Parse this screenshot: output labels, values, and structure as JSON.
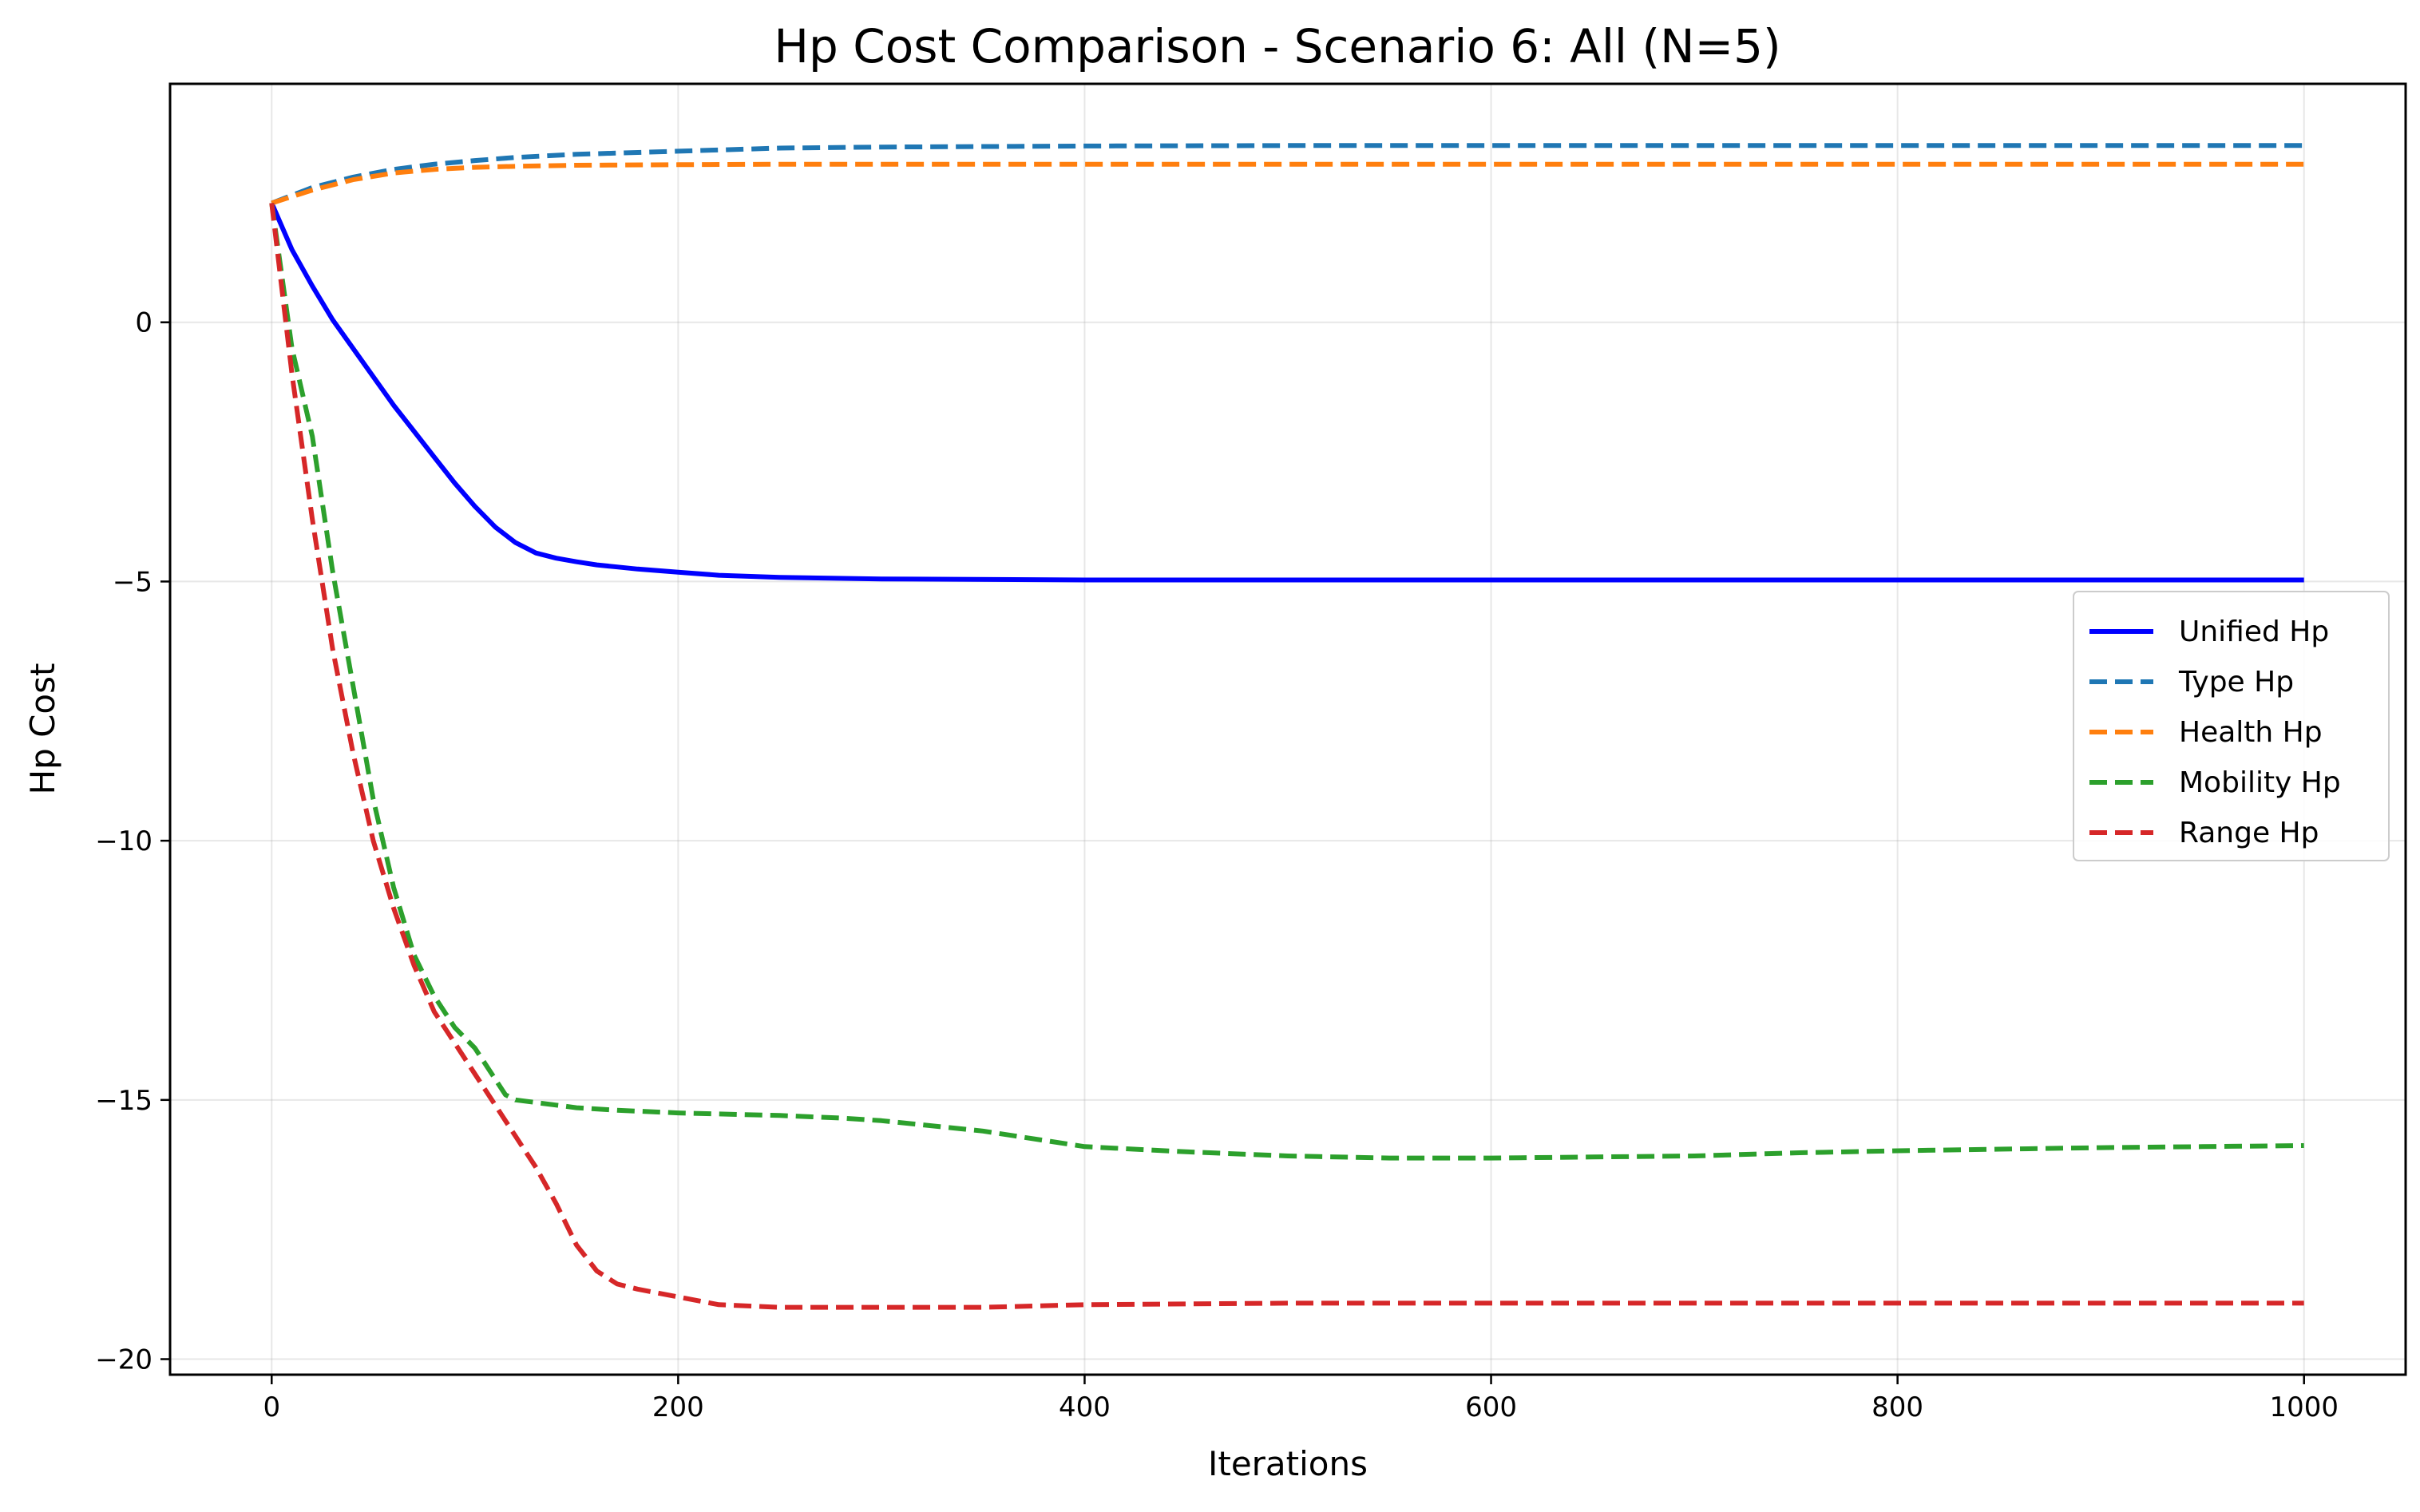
{
  "chart_data": {
    "type": "line",
    "title": "Hp Cost Comparison - Scenario 6: All (N=5)",
    "xlabel": "Iterations",
    "ylabel": "Hp Cost",
    "xlim": [
      -50,
      1050
    ],
    "ylim": [
      -20.3,
      4.6
    ],
    "xticks": [
      0,
      200,
      400,
      600,
      800,
      1000
    ],
    "xtick_labels": [
      "0",
      "200",
      "400",
      "600",
      "800",
      "1000"
    ],
    "yticks": [
      0,
      -5,
      -10,
      -15,
      -20
    ],
    "ytick_labels": [
      "0",
      "−5",
      "−10",
      "−15",
      "−20"
    ],
    "grid": true,
    "legend_position": "center-right",
    "series": [
      {
        "name": "Unified Hp",
        "color": "#0000ff",
        "style": "solid",
        "x": [
          0,
          10,
          20,
          30,
          40,
          50,
          60,
          70,
          80,
          90,
          100,
          110,
          120,
          130,
          140,
          150,
          160,
          170,
          180,
          200,
          220,
          250,
          300,
          400,
          500,
          600,
          700,
          800,
          900,
          1000
        ],
        "y": [
          2.3,
          1.4,
          0.7,
          0.05,
          -0.5,
          -1.05,
          -1.6,
          -2.1,
          -2.6,
          -3.1,
          -3.55,
          -3.95,
          -4.25,
          -4.45,
          -4.55,
          -4.62,
          -4.68,
          -4.72,
          -4.76,
          -4.82,
          -4.88,
          -4.92,
          -4.95,
          -4.97,
          -4.97,
          -4.97,
          -4.97,
          -4.97,
          -4.97,
          -4.97
        ]
      },
      {
        "name": "Type Hp",
        "color": "#1f77b4",
        "style": "dashed",
        "x": [
          0,
          20,
          40,
          60,
          80,
          100,
          120,
          150,
          200,
          250,
          300,
          400,
          500,
          600,
          700,
          800,
          900,
          1000
        ],
        "y": [
          2.3,
          2.6,
          2.8,
          2.95,
          3.05,
          3.12,
          3.18,
          3.24,
          3.3,
          3.36,
          3.38,
          3.4,
          3.41,
          3.41,
          3.41,
          3.41,
          3.41,
          3.41
        ]
      },
      {
        "name": "Health Hp",
        "color": "#ff7f0e",
        "style": "dashed",
        "x": [
          0,
          20,
          40,
          60,
          80,
          100,
          120,
          150,
          200,
          250,
          300,
          400,
          500,
          600,
          700,
          800,
          900,
          1000
        ],
        "y": [
          2.3,
          2.55,
          2.75,
          2.88,
          2.95,
          2.99,
          3.01,
          3.03,
          3.04,
          3.05,
          3.05,
          3.05,
          3.05,
          3.05,
          3.05,
          3.05,
          3.05,
          3.05
        ]
      },
      {
        "name": "Mobility Hp",
        "color": "#2ca02c",
        "style": "dashed",
        "x": [
          0,
          10,
          20,
          30,
          40,
          50,
          60,
          70,
          80,
          90,
          100,
          110,
          115,
          120,
          140,
          150,
          170,
          200,
          250,
          280,
          300,
          350,
          400,
          450,
          500,
          550,
          600,
          650,
          700,
          750,
          800,
          850,
          900,
          950,
          1000
        ],
        "y": [
          2.3,
          -0.5,
          -2.2,
          -4.8,
          -7.0,
          -9.2,
          -10.9,
          -12.2,
          -13.0,
          -13.6,
          -14.0,
          -14.6,
          -14.9,
          -15.0,
          -15.1,
          -15.15,
          -15.2,
          -15.25,
          -15.3,
          -15.35,
          -15.4,
          -15.6,
          -15.9,
          -16.0,
          -16.08,
          -16.12,
          -16.12,
          -16.1,
          -16.08,
          -16.02,
          -15.98,
          -15.95,
          -15.92,
          -15.9,
          -15.88
        ]
      },
      {
        "name": "Range Hp",
        "color": "#d62728",
        "style": "dashed",
        "x": [
          0,
          10,
          20,
          30,
          40,
          50,
          60,
          70,
          80,
          90,
          100,
          110,
          120,
          130,
          140,
          150,
          160,
          170,
          180,
          200,
          220,
          250,
          300,
          350,
          400,
          500,
          600,
          700,
          800,
          900,
          1000
        ],
        "y": [
          2.3,
          -1.0,
          -3.8,
          -6.3,
          -8.3,
          -10.0,
          -11.3,
          -12.4,
          -13.3,
          -13.9,
          -14.5,
          -15.1,
          -15.7,
          -16.3,
          -17.0,
          -17.8,
          -18.3,
          -18.55,
          -18.65,
          -18.8,
          -18.95,
          -19.0,
          -19.0,
          -19.0,
          -18.95,
          -18.92,
          -18.92,
          -18.92,
          -18.92,
          -18.92,
          -18.92
        ]
      }
    ]
  }
}
